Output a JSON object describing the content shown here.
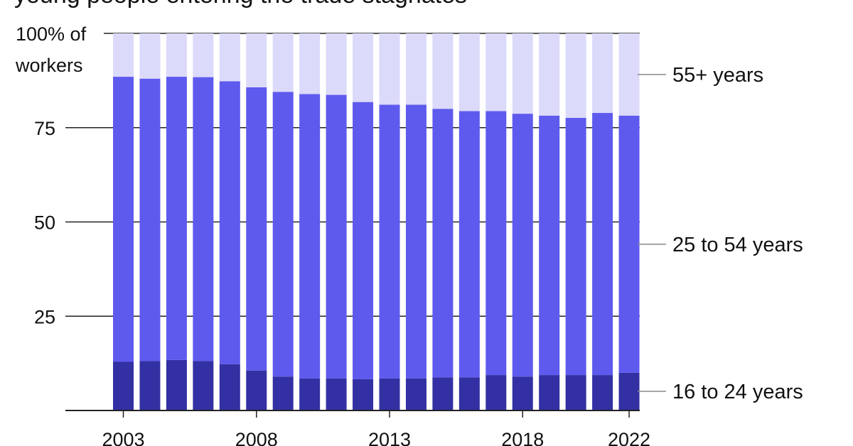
{
  "chart_data": {
    "type": "bar",
    "stacked": true,
    "title": "young people entering the trade stagnates",
    "y_axis": {
      "range": [
        0,
        100
      ],
      "ticks": [
        0,
        25,
        50,
        75,
        100
      ],
      "tick_labels": [
        "",
        "25",
        "50",
        "75",
        "100% of"
      ],
      "top_label_second_line": "workers"
    },
    "x_axis": {
      "tick_labels": [
        "2003",
        "2008",
        "2013",
        "2018",
        "2022"
      ]
    },
    "categories": [
      "2003",
      "2004",
      "2005",
      "2006",
      "2007",
      "2008",
      "2009",
      "2010",
      "2011",
      "2012",
      "2013",
      "2014",
      "2015",
      "2016",
      "2017",
      "2018",
      "2019",
      "2020",
      "2021",
      "2022"
    ],
    "series": [
      {
        "name": "16 to 24 years",
        "color": "#3330a3",
        "values": [
          12.9,
          13.1,
          13.4,
          13.1,
          12.3,
          10.6,
          9.0,
          8.5,
          8.5,
          8.3,
          8.5,
          8.5,
          8.8,
          8.8,
          9.4,
          9.0,
          9.4,
          9.4,
          9.4,
          10.0
        ]
      },
      {
        "name": "25 to 54 years",
        "color": "#5e5aee",
        "values": [
          75.6,
          74.9,
          75.1,
          75.3,
          75.0,
          75.1,
          75.5,
          75.4,
          75.2,
          73.5,
          72.6,
          72.6,
          71.2,
          70.6,
          70.0,
          69.7,
          68.8,
          68.2,
          69.5,
          68.2
        ]
      },
      {
        "name": "55+ years",
        "color": "#dcdafb",
        "values": [
          11.5,
          12.0,
          11.5,
          11.6,
          12.7,
          14.3,
          15.5,
          16.1,
          16.3,
          18.2,
          18.9,
          18.9,
          20.0,
          20.6,
          20.6,
          21.3,
          21.8,
          22.4,
          21.1,
          21.8
        ]
      }
    ],
    "legend_placement": "right, aligned with each band",
    "grid": true
  }
}
